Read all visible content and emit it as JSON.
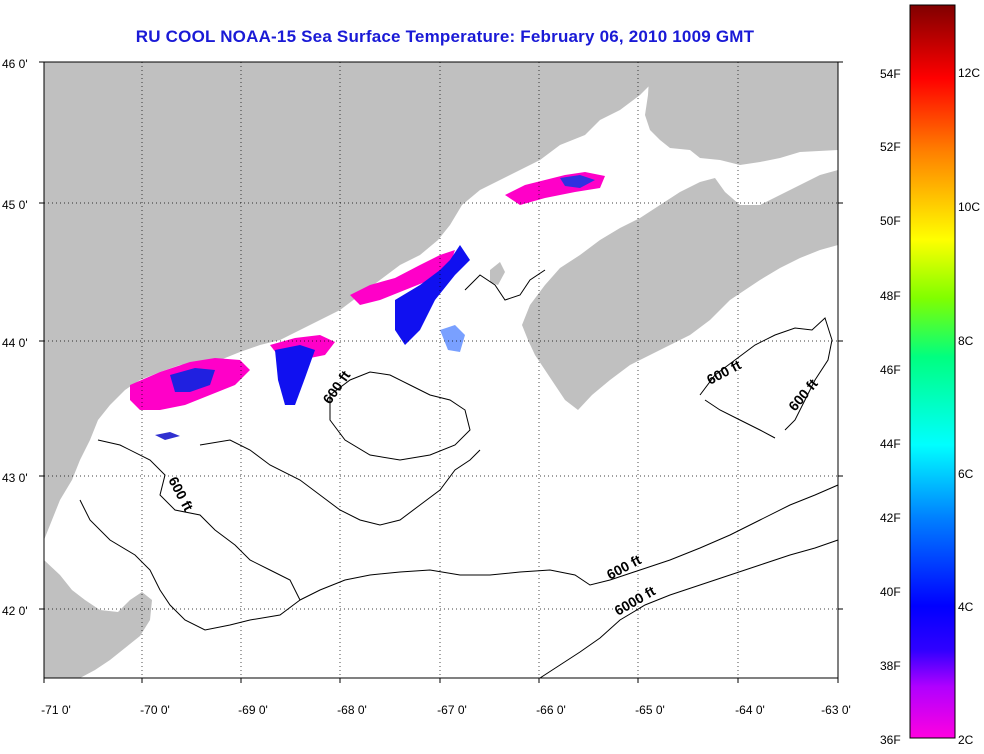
{
  "title": "RU COOL  NOAA-15  Sea Surface Temperature:  February 06, 2010 1009 GMT",
  "map": {
    "lon_labels": [
      "-71 0'",
      "-70 0'",
      "-69 0'",
      "-68 0'",
      "-67 0'",
      "-66 0'",
      "-65 0'",
      "-64 0'",
      "-63 0'"
    ],
    "lat_labels": [
      "46 0'",
      "45 0'",
      "44 0'",
      "43 0'",
      "42 0'"
    ],
    "land_color": "#c0c0c0",
    "water_color": "#ffffff",
    "contour_labels": [
      "600 ft",
      "600 ft",
      "600 ft",
      "600 ft",
      "600 ft",
      "6000 ft"
    ]
  },
  "colorbar": {
    "fahrenheit_labels": [
      "54F",
      "52F",
      "50F",
      "48F",
      "46F",
      "44F",
      "42F",
      "40F",
      "38F",
      "36F"
    ],
    "celsius_labels": [
      "12C",
      "10C",
      "8C",
      "6C",
      "4C",
      "2C"
    ],
    "colors": [
      "#ff00c8",
      "#8000ff",
      "#0000ff",
      "#00ffff",
      "#00ff00",
      "#ffff00",
      "#ff8000",
      "#ff0000",
      "#8b0000"
    ]
  }
}
